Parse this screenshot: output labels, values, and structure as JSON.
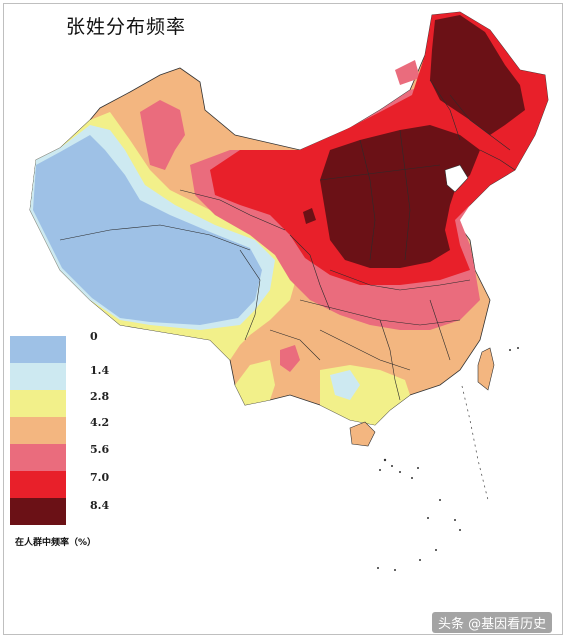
{
  "title": "张姓分布频率",
  "legend": {
    "items": [
      {
        "value": "0",
        "color": "#9ec1e6"
      },
      {
        "value": "1.4",
        "color": "#cde9f1"
      },
      {
        "value": "2.8",
        "color": "#f2f08a"
      },
      {
        "value": "4.2",
        "color": "#f3b680"
      },
      {
        "value": "5.6",
        "color": "#ea6c7d"
      },
      {
        "value": "7.0",
        "color": "#e8202a"
      },
      {
        "value": "8.4",
        "color": "#6b1116"
      }
    ],
    "caption": "在人群中频率（%）"
  },
  "watermark": "头条 @基因看历史",
  "colors": {
    "blue": "#9ec1e6",
    "lightblue": "#cde9f1",
    "yellow": "#f2f08a",
    "orange": "#f3b680",
    "pink": "#ea6c7d",
    "red": "#e8202a",
    "darkred": "#6b1116"
  }
}
